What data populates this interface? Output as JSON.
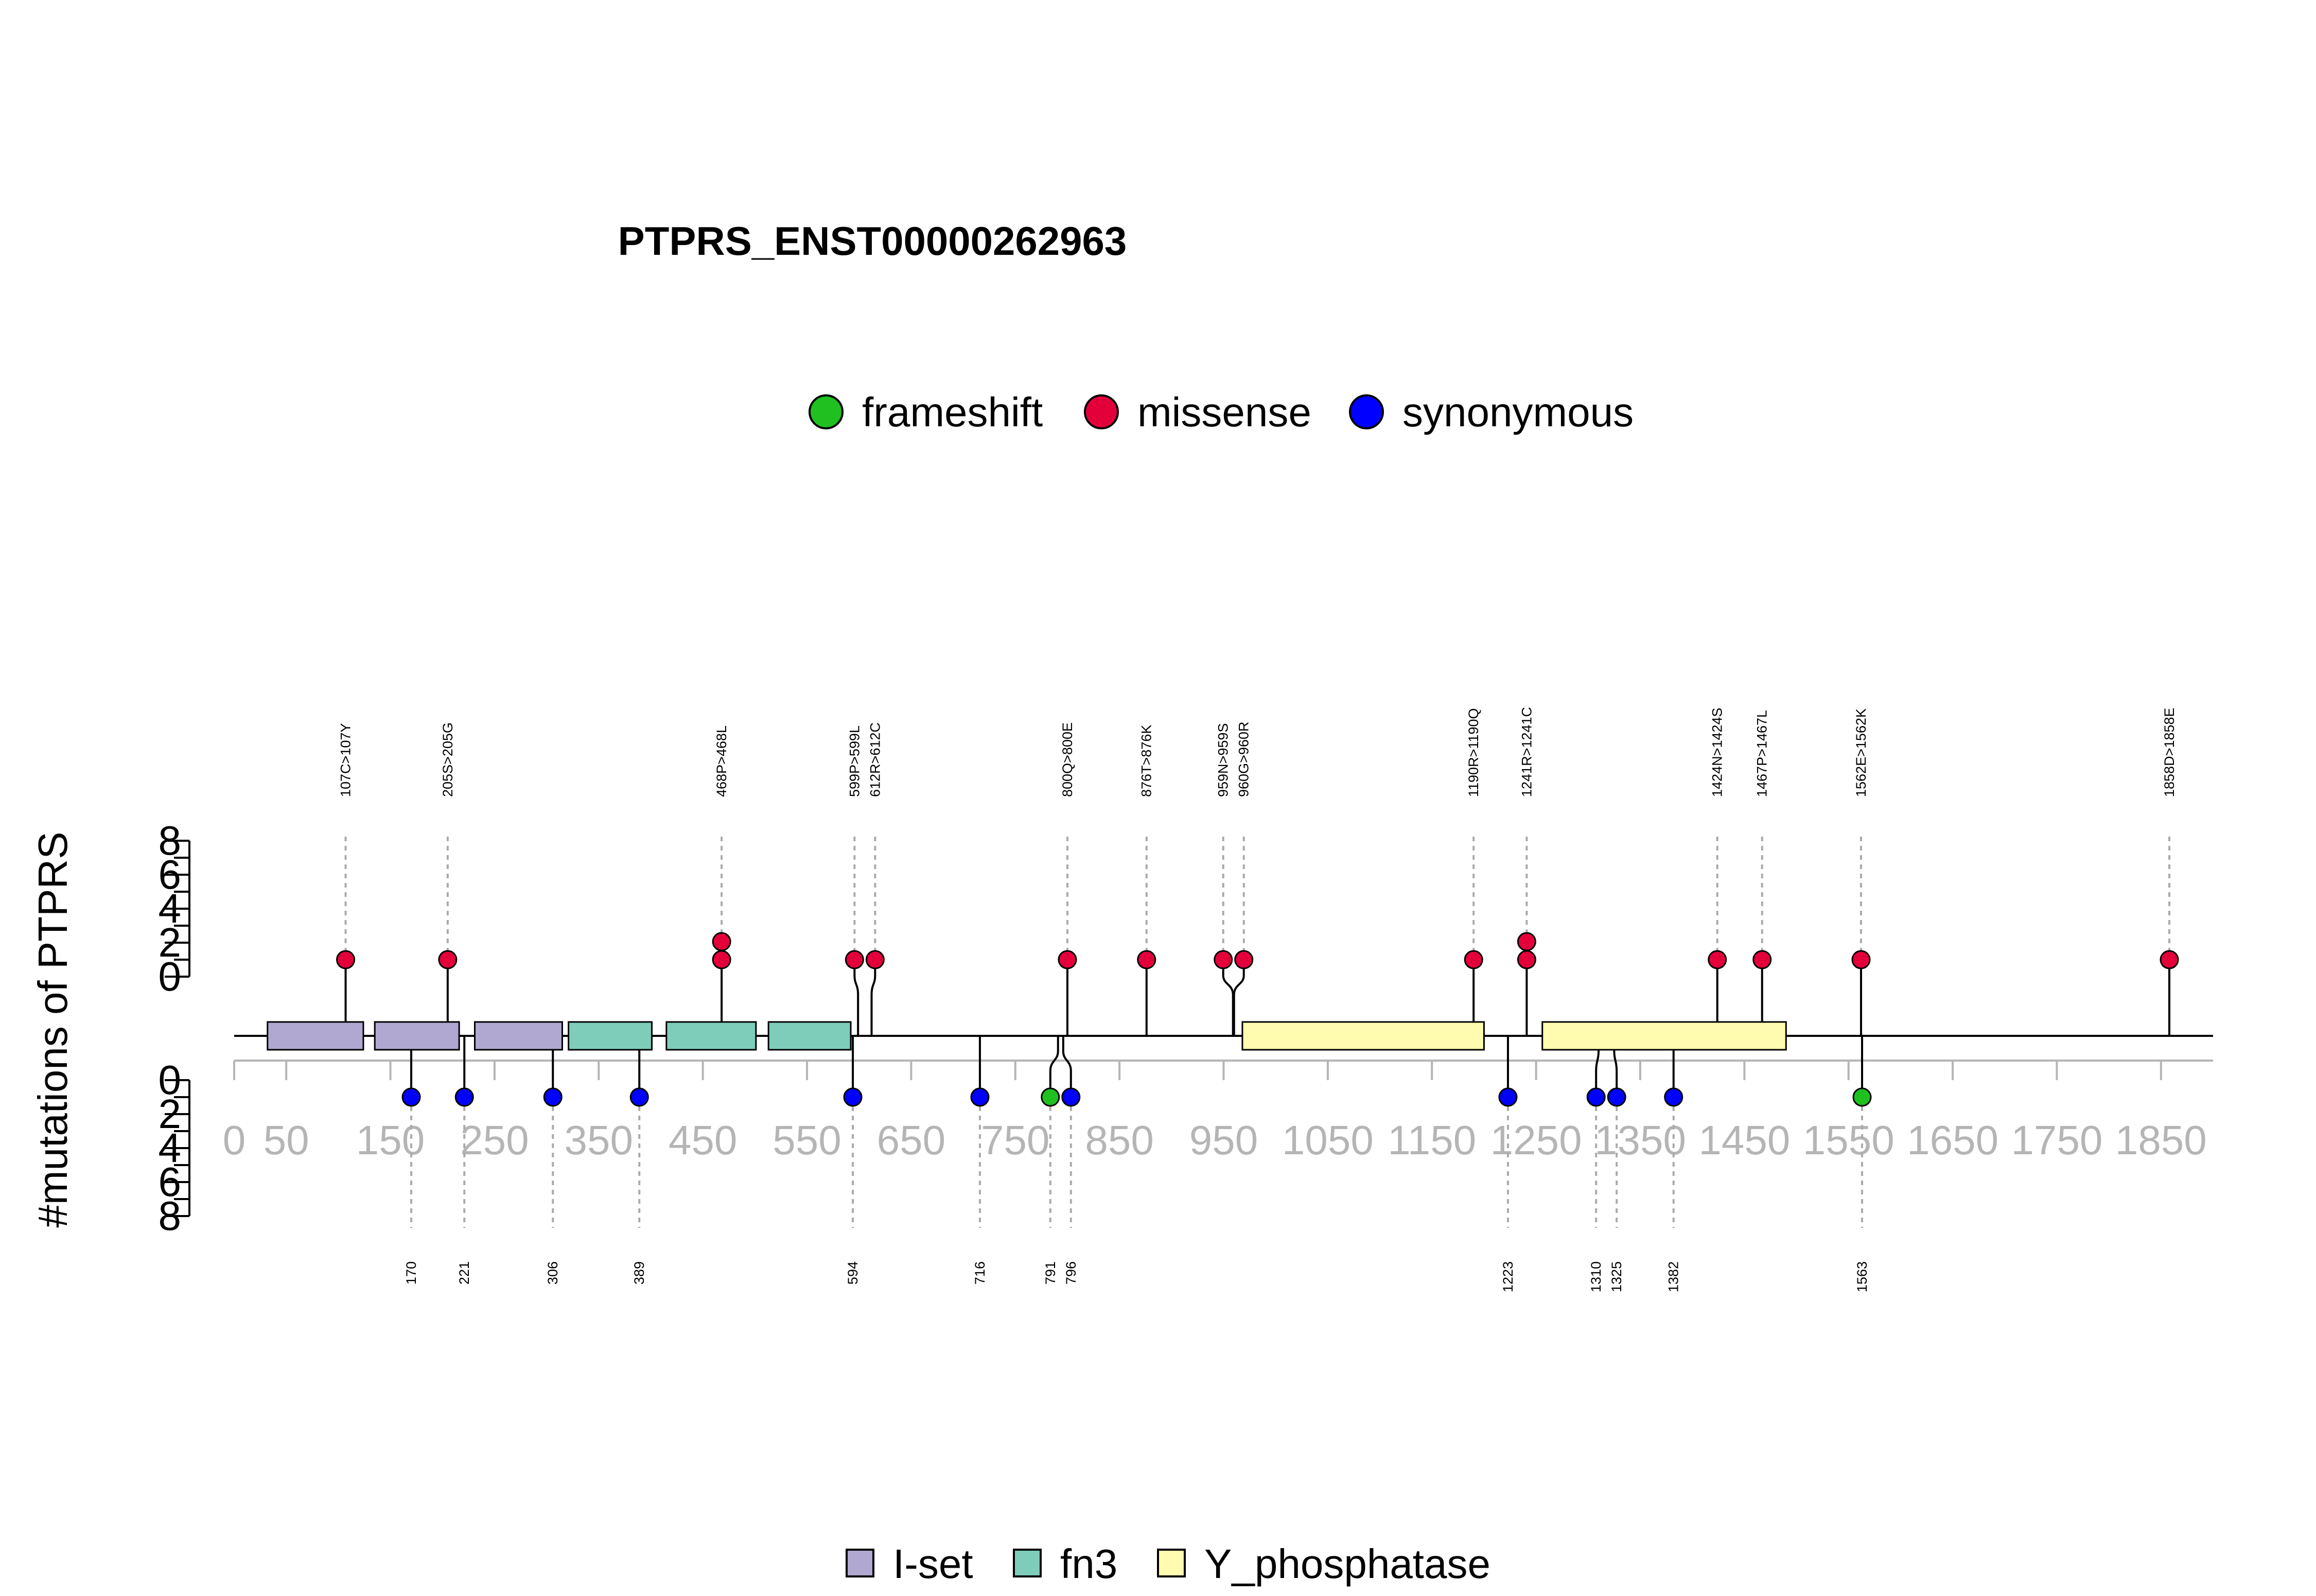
{
  "chart_data": {
    "type": "lollipop",
    "title": "PTPRS_ENST00000262963",
    "ylabel": "#mutations of PTPRS",
    "xlim": [
      0,
      1900
    ],
    "x_ticks": [
      0,
      50,
      150,
      250,
      350,
      450,
      550,
      650,
      750,
      850,
      950,
      1050,
      1150,
      1250,
      1350,
      1450,
      1550,
      1650,
      1750,
      1850
    ],
    "y_ticks": [
      0,
      2,
      4,
      6,
      8
    ],
    "ylim": [
      0,
      8
    ],
    "legend_top": [
      {
        "label": "frameshift",
        "color": "#1fc01f"
      },
      {
        "label": "missense",
        "color": "#e3003a"
      },
      {
        "label": "synonymous",
        "color": "#0000ff"
      }
    ],
    "legend_bottom": [
      {
        "label": "I-set",
        "color": "#b0a8d0"
      },
      {
        "label": "fn3",
        "color": "#7ecdbb"
      },
      {
        "label": "Y_phosphatase",
        "color": "#fffcb0"
      }
    ],
    "domains": [
      {
        "type": "I-set",
        "start": 32,
        "end": 124
      },
      {
        "type": "I-set",
        "start": 135,
        "end": 216
      },
      {
        "type": "I-set",
        "start": 231,
        "end": 315
      },
      {
        "type": "fn3",
        "start": 321,
        "end": 401
      },
      {
        "type": "fn3",
        "start": 415,
        "end": 501
      },
      {
        "type": "fn3",
        "start": 513,
        "end": 592
      },
      {
        "type": "Y_phosphatase",
        "start": 968,
        "end": 1200
      },
      {
        "type": "Y_phosphatase",
        "start": 1256,
        "end": 1490
      }
    ],
    "top_mutations": [
      {
        "label": "107C>107Y",
        "pos": 107,
        "count": 1,
        "type": "missense"
      },
      {
        "label": "205S>205G",
        "pos": 205,
        "count": 1,
        "type": "missense"
      },
      {
        "label": "468P>468L",
        "pos": 468,
        "count": 2,
        "type": "missense"
      },
      {
        "label": "599P>599L",
        "pos": 599,
        "count": 1,
        "type": "missense"
      },
      {
        "label": "612R>612C",
        "pos": 612,
        "count": 1,
        "type": "missense"
      },
      {
        "label": "800Q>800E",
        "pos": 800,
        "count": 1,
        "type": "missense"
      },
      {
        "label": "876T>876K",
        "pos": 876,
        "count": 1,
        "type": "missense"
      },
      {
        "label": "959N>959S",
        "pos": 959,
        "count": 1,
        "type": "missense"
      },
      {
        "label": "960G>960R",
        "pos": 960,
        "count": 1,
        "type": "missense"
      },
      {
        "label": "1190R>1190Q",
        "pos": 1190,
        "count": 1,
        "type": "missense"
      },
      {
        "label": "1241R>1241C",
        "pos": 1241,
        "count": 2,
        "type": "missense"
      },
      {
        "label": "1424N>1424S",
        "pos": 1424,
        "count": 1,
        "type": "missense"
      },
      {
        "label": "1467P>1467L",
        "pos": 1467,
        "count": 1,
        "type": "missense"
      },
      {
        "label": "1562E>1562K",
        "pos": 1562,
        "count": 1,
        "type": "missense"
      },
      {
        "label": "1858D>1858E",
        "pos": 1858,
        "count": 1,
        "type": "missense"
      }
    ],
    "bottom_mutations": [
      {
        "label": "170",
        "pos": 170,
        "count": 1,
        "type": "synonymous"
      },
      {
        "label": "221",
        "pos": 221,
        "count": 1,
        "type": "synonymous"
      },
      {
        "label": "306",
        "pos": 306,
        "count": 1,
        "type": "synonymous"
      },
      {
        "label": "389",
        "pos": 389,
        "count": 1,
        "type": "synonymous"
      },
      {
        "label": "594",
        "pos": 594,
        "count": 1,
        "type": "synonymous"
      },
      {
        "label": "716",
        "pos": 716,
        "count": 1,
        "type": "synonymous"
      },
      {
        "label": "791",
        "pos": 791,
        "count": 1,
        "type": "frameshift"
      },
      {
        "label": "796",
        "pos": 796,
        "count": 1,
        "type": "synonymous"
      },
      {
        "label": "1223",
        "pos": 1223,
        "count": 1,
        "type": "synonymous"
      },
      {
        "label": "1310",
        "pos": 1310,
        "count": 1,
        "type": "synonymous"
      },
      {
        "label": "1325",
        "pos": 1325,
        "count": 1,
        "type": "synonymous"
      },
      {
        "label": "1382",
        "pos": 1382,
        "count": 1,
        "type": "synonymous"
      },
      {
        "label": "1563",
        "pos": 1563,
        "count": 1,
        "type": "frameshift"
      }
    ]
  }
}
